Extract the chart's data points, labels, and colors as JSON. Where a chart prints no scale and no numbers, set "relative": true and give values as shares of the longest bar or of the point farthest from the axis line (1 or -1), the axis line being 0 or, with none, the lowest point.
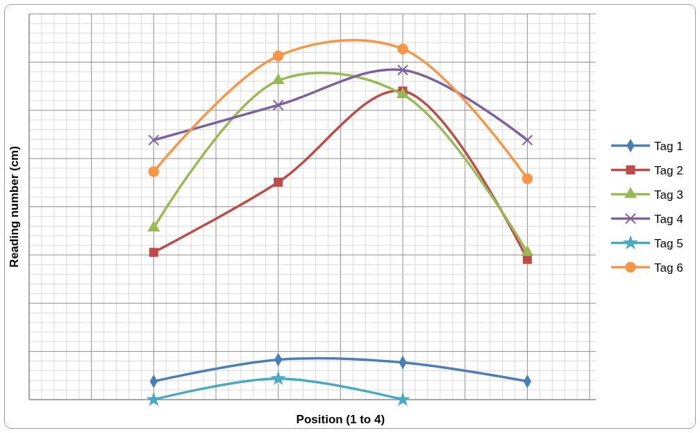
{
  "chart_data": {
    "type": "line",
    "xlabel": "Position (1 to 4)",
    "ylabel": "Reading number (cm)",
    "relative": true,
    "grid": true,
    "legend": "right",
    "line_style": "solid",
    "categories": [
      null,
      null,
      null,
      null
    ],
    "series": [
      {
        "name": "Tag 1",
        "color": "#4a7ebb",
        "marker": "diamond",
        "values": [
          0.052,
          0.114,
          0.106,
          0.052
        ]
      },
      {
        "name": "Tag 2",
        "color": "#be4b48",
        "marker": "square",
        "values": [
          0.42,
          0.62,
          0.88,
          0.4
        ]
      },
      {
        "name": "Tag 3",
        "color": "#98b954",
        "marker": "triangle",
        "values": [
          0.49,
          0.91,
          0.87,
          0.42
        ]
      },
      {
        "name": "Tag 4",
        "color": "#7d60a0",
        "marker": "cross",
        "values": [
          0.74,
          0.84,
          0.94,
          0.74
        ]
      },
      {
        "name": "Tag 5",
        "color": "#46aac5",
        "marker": "star",
        "values": [
          0,
          0.06,
          0,
          null
        ]
      },
      {
        "name": "Tag 6",
        "color": "#f79646",
        "marker": "circle",
        "values": [
          0.65,
          0.98,
          1,
          0.63
        ]
      }
    ]
  }
}
